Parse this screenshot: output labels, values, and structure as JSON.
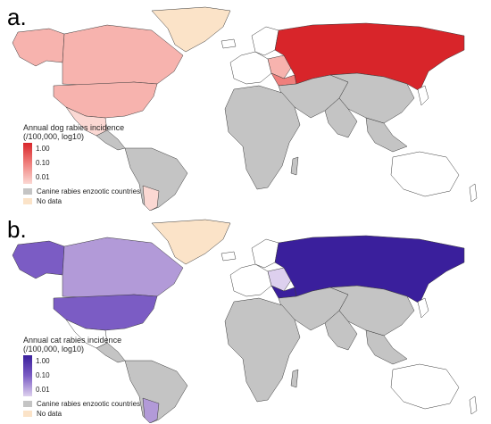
{
  "panels": [
    {
      "letter": "a.",
      "legend_title_1": "Annual dog rabies incidence",
      "legend_title_2": "(/100,000, log10)",
      "ticks": [
        "1.00",
        "0.10",
        "0.01"
      ],
      "enzootic_label": "Canine rabies enzootic countries",
      "nodata_label": "No data",
      "colors": {
        "high": "#d8252a",
        "mid": "#ef7f7c",
        "low": "#f7b3ae",
        "lowest": "#fbd8d3"
      }
    },
    {
      "letter": "b.",
      "legend_title_1": "Annual cat rabies incidence",
      "legend_title_2": "(/100,000, log10)",
      "ticks": [
        "1.00",
        "0.10",
        "0.01"
      ],
      "enzootic_label": "Canine rabies enzootic countries",
      "nodata_label": "No data",
      "colors": {
        "high": "#3a1f9c",
        "mid": "#7b5cc4",
        "low": "#b29ad8",
        "lowest": "#ddd0ee"
      }
    }
  ],
  "shared_colors": {
    "enzootic": "#c4c4c4",
    "nodata": "#fbe3c8",
    "free": "#ffffff",
    "border": "#3a3a3a"
  }
}
